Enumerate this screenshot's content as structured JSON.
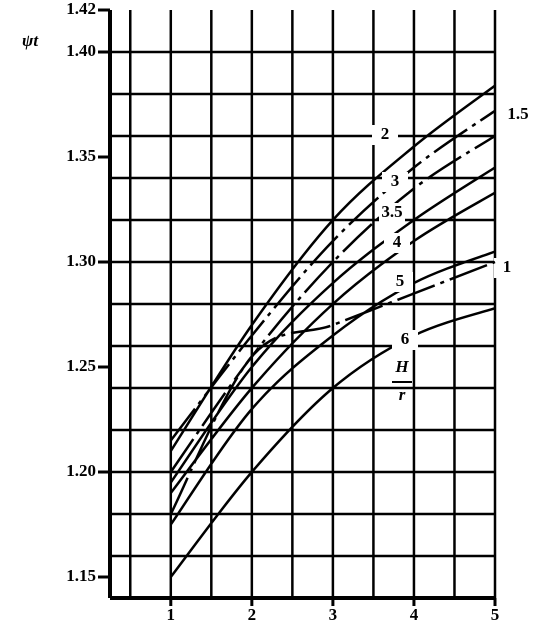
{
  "chart_data": {
    "type": "line",
    "y_label": "ψt",
    "legend_title": {
      "numerator": "H",
      "denominator": "r"
    },
    "x": [
      1,
      2,
      3,
      4,
      5
    ],
    "xlim": [
      0.25,
      5
    ],
    "xticks": [
      1,
      2,
      3,
      4,
      5
    ],
    "ylim": [
      1.14,
      1.42
    ],
    "yticks": [
      {
        "value": 1.15,
        "label": "1.15"
      },
      {
        "value": 1.2,
        "label": "1.20"
      },
      {
        "value": 1.25,
        "label": "1.25"
      },
      {
        "value": 1.3,
        "label": "1.30"
      },
      {
        "value": 1.35,
        "label": "1.35"
      },
      {
        "value": 1.4,
        "label": "1.40"
      },
      {
        "value": 1.42,
        "label": "1.42"
      }
    ],
    "xgrid": [
      0.5,
      1,
      1.5,
      2,
      2.5,
      3,
      3.5,
      4,
      4.5,
      5
    ],
    "ygrid": [
      1.16,
      1.18,
      1.2,
      1.22,
      1.24,
      1.26,
      1.28,
      1.3,
      1.32,
      1.34,
      1.36,
      1.38,
      1.4
    ],
    "grid": true,
    "series": [
      {
        "name": "2",
        "color": "#000000",
        "dashed": false,
        "values": [
          1.21,
          1.27,
          1.32,
          1.355,
          1.384
        ]
      },
      {
        "name": "1.5",
        "color": "#000000",
        "dashed": true,
        "values": [
          1.215,
          1.265,
          1.31,
          1.345,
          1.372
        ]
      },
      {
        "name": "3",
        "color": "#000000",
        "dashed": true,
        "values": [
          1.2,
          1.255,
          1.3,
          1.335,
          1.36
        ]
      },
      {
        "name": "3.5",
        "color": "#000000",
        "dashed": false,
        "values": [
          1.195,
          1.25,
          1.29,
          1.32,
          1.345
        ]
      },
      {
        "name": "4",
        "color": "#000000",
        "dashed": false,
        "values": [
          1.19,
          1.24,
          1.28,
          1.31,
          1.333
        ]
      },
      {
        "name": "1",
        "color": "#000000",
        "dashed": false,
        "values": [
          1.175,
          1.23,
          1.265,
          1.29,
          1.305
        ]
      },
      {
        "name": "5",
        "color": "#000000",
        "dashed": true,
        "values": [
          1.18,
          1.255,
          1.27,
          1.285,
          1.3
        ]
      },
      {
        "name": "6",
        "color": "#000000",
        "dashed": false,
        "values": [
          1.15,
          1.2,
          1.24,
          1.265,
          1.278
        ]
      }
    ]
  }
}
